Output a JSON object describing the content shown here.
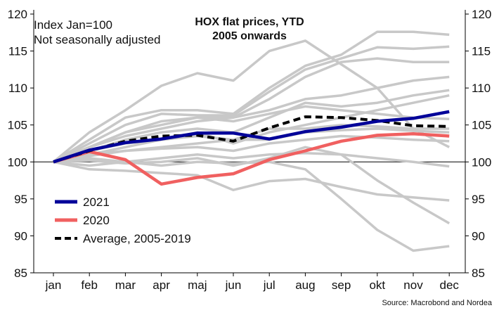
{
  "chart_data": {
    "type": "line",
    "title": "HOX flat prices, YTD",
    "subtitle": "2005 onwards",
    "note_lines": [
      "Index Jan=100",
      "Not seasonally adjusted"
    ],
    "source": "Source: Macrobond and Nordea",
    "categories": [
      "jan",
      "feb",
      "mar",
      "apr",
      "maj",
      "jun",
      "jul",
      "aug",
      "sep",
      "okt",
      "nov",
      "dec"
    ],
    "ylim": [
      85,
      120
    ],
    "yticks": [
      85,
      90,
      95,
      100,
      105,
      110,
      115,
      120
    ],
    "reference_line": 100,
    "series": [
      {
        "name": "2021",
        "color": "#000099",
        "style": "solid",
        "values": [
          100,
          101.6,
          102.6,
          103.1,
          103.9,
          103.9,
          103.1,
          104.1,
          104.7,
          105.5,
          105.9,
          106.8
        ]
      },
      {
        "name": "2020",
        "color": "#f06060",
        "style": "solid",
        "values": [
          100,
          101.4,
          100.3,
          97.0,
          97.9,
          98.4,
          100.3,
          101.5,
          102.8,
          103.6,
          103.8,
          103.5
        ]
      },
      {
        "name": "Average, 2005-2019",
        "color": "#000000",
        "style": "dashed",
        "values": [
          100,
          101.5,
          102.8,
          103.5,
          103.6,
          102.8,
          104.6,
          106.1,
          106.0,
          105.6,
          104.9,
          104.8
        ]
      }
    ],
    "background_series": [
      [
        100,
        104.0,
        107.0,
        110.3,
        112.0,
        111.0,
        115.0,
        116.4,
        113.2,
        110.0,
        104.5,
        102.0
      ],
      [
        100,
        103.0,
        106.0,
        107.0,
        107.0,
        106.5,
        110.0,
        113.0,
        114.5,
        117.6,
        117.6,
        117.2
      ],
      [
        100,
        102.5,
        105.0,
        106.5,
        106.3,
        106.3,
        109.5,
        112.5,
        114.0,
        115.5,
        115.3,
        115.6
      ],
      [
        100,
        102.0,
        104.0,
        105.5,
        106.0,
        106.0,
        108.5,
        111.5,
        113.5,
        114.0,
        113.5,
        113.5
      ],
      [
        100,
        102.0,
        103.5,
        104.5,
        105.5,
        106.0,
        107.0,
        108.5,
        109.0,
        110.0,
        111.0,
        111.5
      ],
      [
        100,
        101.5,
        103.0,
        104.0,
        104.5,
        104.0,
        106.0,
        108.0,
        107.5,
        108.0,
        109.0,
        109.7
      ],
      [
        100,
        101.0,
        102.0,
        103.0,
        104.0,
        102.5,
        104.0,
        105.0,
        106.0,
        107.0,
        108.0,
        109.0
      ],
      [
        100,
        102.0,
        104.0,
        105.0,
        106.0,
        105.5,
        106.5,
        107.5,
        107.0,
        106.5,
        106.0,
        105.8
      ],
      [
        100,
        101.5,
        102.5,
        103.0,
        103.5,
        103.0,
        104.5,
        104.5,
        105.0,
        104.8,
        104.5,
        104.5
      ],
      [
        100,
        100.8,
        101.5,
        102.0,
        102.5,
        103.0,
        103.0,
        104.0,
        104.3,
        104.5,
        104.2,
        104.0
      ],
      [
        100,
        101.0,
        101.5,
        101.8,
        102.0,
        101.5,
        102.5,
        103.0,
        103.5,
        103.3,
        103.0,
        102.8
      ],
      [
        100,
        99.5,
        100.0,
        100.5,
        101.0,
        100.5,
        101.0,
        101.2,
        101.0,
        100.5,
        100.0,
        99.4
      ],
      [
        100,
        99.0,
        98.8,
        98.5,
        98.2,
        96.2,
        97.4,
        97.7,
        96.6,
        95.6,
        95.2,
        94.8
      ],
      [
        100,
        100.5,
        100.0,
        99.5,
        100.0,
        99.8,
        100.0,
        99.0,
        95.0,
        90.8,
        88.0,
        88.6
      ],
      [
        100,
        100.2,
        99.8,
        100.0,
        100.5,
        99.5,
        100.5,
        102.0,
        101.0,
        97.5,
        94.5,
        91.7
      ]
    ]
  }
}
